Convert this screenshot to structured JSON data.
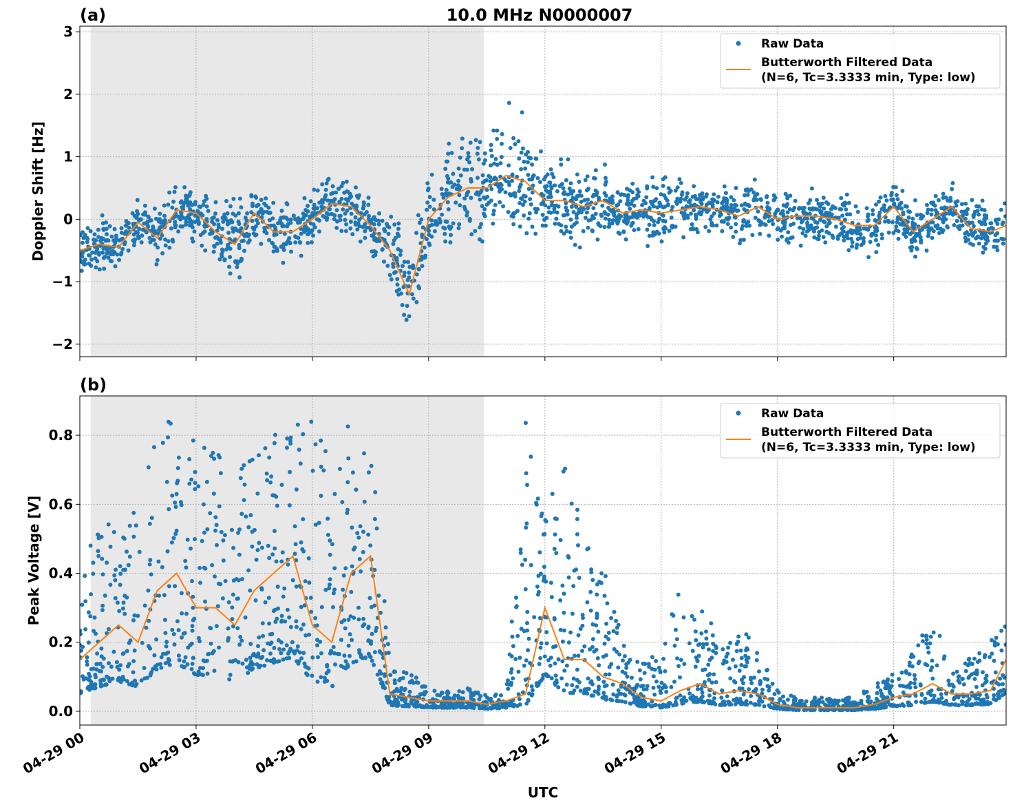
{
  "chart_data": [
    {
      "type": "scatter",
      "panel_label": "(a)",
      "title": "10.0 MHz N0000007",
      "ylabel": "Doppler Shift [Hz]",
      "xlabel": "",
      "ylim": [
        -2.2,
        3.09
      ],
      "yticks": [
        -2,
        -1,
        0,
        1,
        2,
        3
      ],
      "ytick_labels": [
        "−2",
        "−1",
        "0",
        "1",
        "2",
        "3"
      ],
      "xlim_hours": [
        0,
        23.9
      ],
      "grid": true,
      "shaded_hours": [
        0.28,
        10.43
      ],
      "legend": {
        "placement": "top-right",
        "entries": [
          "Raw Data",
          "Butterworth Filtered Data",
          "(N=6, Tc=3.3333 min, Type: low)"
        ]
      },
      "hours": [
        0,
        0.5,
        1,
        1.5,
        2,
        2.5,
        3,
        3.5,
        4,
        4.5,
        5,
        5.5,
        6,
        6.5,
        7,
        7.5,
        8,
        8.5,
        9,
        9.5,
        10,
        10.5,
        11,
        11.5,
        12,
        12.5,
        13,
        13.5,
        14,
        14.5,
        15,
        15.5,
        16,
        16.5,
        17,
        17.5,
        18,
        18.5,
        19,
        19.5,
        20,
        20.5,
        21,
        21.5,
        22,
        22.5,
        23,
        23.5,
        23.9
      ],
      "filtered": [
        -0.5,
        -0.4,
        -0.45,
        -0.05,
        -0.3,
        0.15,
        0.1,
        -0.2,
        -0.4,
        0.1,
        -0.2,
        -0.2,
        0.0,
        0.25,
        0.2,
        -0.1,
        -0.5,
        -1.2,
        0.0,
        0.35,
        0.5,
        0.5,
        0.7,
        0.6,
        0.3,
        0.3,
        0.2,
        0.3,
        0.1,
        0.15,
        0.1,
        0.15,
        0.2,
        0.15,
        0.05,
        0.2,
        0.0,
        0.05,
        0.05,
        0.0,
        -0.1,
        -0.1,
        0.2,
        -0.2,
        0.0,
        0.2,
        -0.15,
        -0.2,
        -0.1
      ],
      "raw_spread": [
        0.3,
        0.3,
        0.3,
        0.3,
        0.3,
        0.3,
        0.3,
        0.35,
        0.5,
        0.35,
        0.35,
        0.3,
        0.3,
        0.3,
        0.3,
        0.3,
        0.4,
        0.5,
        0.5,
        0.6,
        0.6,
        0.6,
        0.7,
        0.7,
        0.4,
        0.4,
        0.4,
        0.4,
        0.3,
        0.3,
        0.4,
        0.35,
        0.3,
        0.3,
        0.3,
        0.3,
        0.3,
        0.3,
        0.3,
        0.3,
        0.3,
        0.3,
        0.3,
        0.3,
        0.3,
        0.3,
        0.3,
        0.3,
        0.3
      ]
    },
    {
      "type": "scatter",
      "panel_label": "(b)",
      "ylabel": "Peak Voltage [V]",
      "xlabel": "UTC",
      "ylim": [
        -0.04,
        0.914
      ],
      "yticks": [
        0.0,
        0.2,
        0.4,
        0.6,
        0.8
      ],
      "ytick_labels": [
        "0.0",
        "0.2",
        "0.4",
        "0.6",
        "0.8"
      ],
      "xlim_hours": [
        0,
        23.9
      ],
      "xticks_hours": [
        0,
        3,
        6,
        9,
        12,
        15,
        18,
        21
      ],
      "xtick_labels": [
        "04-29 00",
        "04-29 03",
        "04-29 06",
        "04-29 09",
        "04-29 12",
        "04-29 15",
        "04-29 18",
        "04-29 21"
      ],
      "grid": true,
      "shaded_hours": [
        0.28,
        10.43
      ],
      "legend": {
        "placement": "top-right",
        "entries": [
          "Raw Data",
          "Butterworth Filtered Data",
          "(N=6, Tc=3.3333 min, Type: low)"
        ]
      },
      "hours": [
        0,
        0.5,
        1,
        1.5,
        2,
        2.5,
        3,
        3.5,
        4,
        4.5,
        5,
        5.5,
        6,
        6.5,
        7,
        7.5,
        8,
        8.5,
        9,
        9.5,
        10,
        10.5,
        11,
        11.5,
        12,
        12.5,
        13,
        13.5,
        14,
        14.5,
        15,
        15.5,
        16,
        16.5,
        17,
        17.5,
        18,
        18.5,
        19,
        19.5,
        20,
        20.5,
        21,
        21.5,
        22,
        22.5,
        23,
        23.5,
        23.9
      ],
      "filtered": [
        0.15,
        0.2,
        0.25,
        0.2,
        0.35,
        0.4,
        0.3,
        0.3,
        0.25,
        0.35,
        0.4,
        0.45,
        0.25,
        0.2,
        0.4,
        0.45,
        0.05,
        0.04,
        0.03,
        0.03,
        0.03,
        0.02,
        0.03,
        0.05,
        0.3,
        0.15,
        0.15,
        0.1,
        0.08,
        0.04,
        0.03,
        0.06,
        0.08,
        0.05,
        0.06,
        0.05,
        0.02,
        0.01,
        0.01,
        0.01,
        0.01,
        0.02,
        0.04,
        0.05,
        0.08,
        0.05,
        0.05,
        0.06,
        0.15
      ],
      "raw_hi": [
        0.35,
        0.6,
        0.55,
        0.6,
        0.85,
        0.87,
        0.78,
        0.78,
        0.75,
        0.8,
        0.8,
        0.84,
        0.85,
        0.82,
        0.86,
        0.86,
        0.13,
        0.13,
        0.06,
        0.06,
        0.07,
        0.05,
        0.05,
        0.84,
        0.6,
        0.78,
        0.5,
        0.5,
        0.2,
        0.15,
        0.2,
        0.37,
        0.33,
        0.2,
        0.25,
        0.2,
        0.06,
        0.04,
        0.04,
        0.04,
        0.04,
        0.08,
        0.12,
        0.18,
        0.28,
        0.2,
        0.15,
        0.25,
        0.25
      ]
    }
  ]
}
